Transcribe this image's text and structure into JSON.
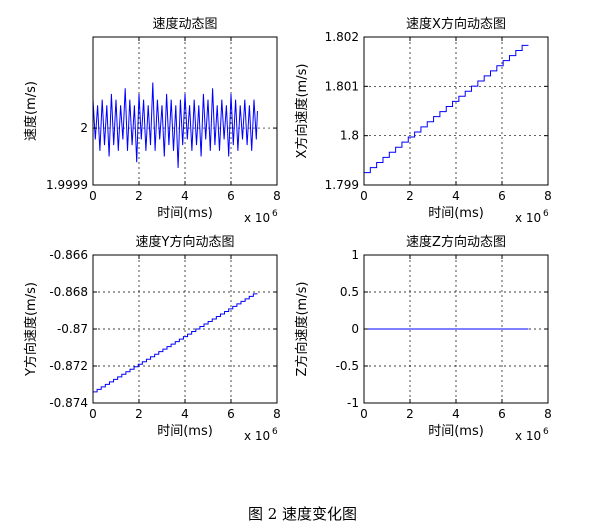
{
  "figure_caption": "图 2  速度变化图",
  "chart_data": [
    {
      "type": "line",
      "title": "速度动态图",
      "xlabel": "时间(ms)",
      "ylabel": "速度(m/s)",
      "x_multiplier": "x 10",
      "x_multiplier_exp": "6",
      "xlim": [
        0,
        8
      ],
      "ylim": [
        1.9999,
        2.00016
      ],
      "xticks": [
        "0",
        "2",
        "4",
        "6",
        "8"
      ],
      "xtick_values": [
        0,
        2,
        4,
        6,
        8
      ],
      "yticks": [
        "1.9999",
        "2"
      ],
      "ytick_values": [
        1.9999,
        2.0
      ],
      "grid": true,
      "line_color": "#0000ff",
      "series": [
        {
          "x": [
            0.0,
            0.1,
            0.2,
            0.3,
            0.4,
            0.5,
            0.6,
            0.7,
            0.8,
            0.9,
            1.0,
            1.1,
            1.2,
            1.3,
            1.4,
            1.5,
            1.6,
            1.7,
            1.8,
            1.9,
            2.0,
            2.1,
            2.2,
            2.3,
            2.4,
            2.5,
            2.6,
            2.7,
            2.8,
            2.9,
            3.0,
            3.1,
            3.2,
            3.3,
            3.4,
            3.5,
            3.6,
            3.7,
            3.8,
            3.9,
            4.0,
            4.1,
            4.2,
            4.3,
            4.4,
            4.5,
            4.6,
            4.7,
            4.8,
            4.9,
            5.0,
            5.1,
            5.2,
            5.3,
            5.4,
            5.5,
            5.6,
            5.7,
            5.8,
            5.9,
            6.0,
            6.1,
            6.2,
            6.3,
            6.4,
            6.5,
            6.6,
            6.7,
            6.8,
            6.9,
            7.0,
            7.1,
            7.15
          ],
          "y": [
            2.00005,
            1.99998,
            2.00004,
            1.99996,
            2.00005,
            1.99997,
            2.00004,
            1.99995,
            2.00006,
            1.99997,
            2.00005,
            1.99996,
            2.00004,
            1.99998,
            2.00007,
            1.99996,
            2.00005,
            1.99997,
            2.00004,
            1.99994,
            2.00006,
            1.99998,
            2.00005,
            1.99996,
            2.00004,
            1.99997,
            2.00008,
            1.99996,
            2.00005,
            1.99998,
            2.00004,
            1.99995,
            2.00006,
            1.99997,
            2.00005,
            1.99996,
            2.00004,
            1.99993,
            2.00005,
            1.99997,
            2.00006,
            1.99998,
            2.00004,
            1.99996,
            2.00005,
            1.99997,
            2.00004,
            1.99995,
            2.00006,
            1.99998,
            2.00005,
            1.99996,
            2.00007,
            1.99997,
            2.00004,
            1.99996,
            2.00005,
            1.99998,
            2.00004,
            1.99995,
            2.00006,
            1.99997,
            2.00005,
            1.99996,
            2.00004,
            1.99998,
            2.00005,
            1.99997,
            2.00004,
            1.99996,
            2.00005,
            1.99998,
            2.00003
          ]
        }
      ]
    },
    {
      "type": "line",
      "title": "速度X方向动态图",
      "xlabel": "时间(ms)",
      "ylabel": "X方向速度(m/s)",
      "x_multiplier": "x 10",
      "x_multiplier_exp": "6",
      "xlim": [
        0,
        8
      ],
      "ylim": [
        1.799,
        1.802
      ],
      "xticks": [
        "0",
        "2",
        "4",
        "6",
        "8"
      ],
      "xtick_values": [
        0,
        2,
        4,
        6,
        8
      ],
      "yticks": [
        "1.799",
        "1.8",
        "1.801",
        "1.802"
      ],
      "ytick_values": [
        1.799,
        1.8,
        1.801,
        1.802
      ],
      "grid": true,
      "line_color": "#0000ff",
      "series": [
        {
          "x": [
            0,
            7.15
          ],
          "y": [
            1.79925,
            1.80183
          ],
          "style": "staircase",
          "steps": 26
        }
      ]
    },
    {
      "type": "line",
      "title": "速度Y方向动态图",
      "xlabel": "时间(ms)",
      "ylabel": "Y方向速度(m/s)",
      "x_multiplier": "x 10",
      "x_multiplier_exp": "6",
      "xlim": [
        0,
        8
      ],
      "ylim": [
        -0.874,
        -0.866
      ],
      "xticks": [
        "0",
        "2",
        "4",
        "6",
        "8"
      ],
      "xtick_values": [
        0,
        2,
        4,
        6,
        8
      ],
      "yticks": [
        "-0.874",
        "-0.872",
        "-0.87",
        "-0.868",
        "-0.866"
      ],
      "ytick_values": [
        -0.874,
        -0.872,
        -0.87,
        -0.868,
        -0.866
      ],
      "grid": true,
      "line_color": "#0000ff",
      "series": [
        {
          "x": [
            0,
            7.15
          ],
          "y": [
            -0.8734,
            -0.8681
          ],
          "style": "staircase",
          "steps": 40
        }
      ]
    },
    {
      "type": "line",
      "title": "速度Z方向动态图",
      "xlabel": "时间(ms)",
      "ylabel": "Z方向速度(m/s)",
      "x_multiplier": "x 10",
      "x_multiplier_exp": "6",
      "xlim": [
        0,
        8
      ],
      "ylim": [
        -1,
        1
      ],
      "xticks": [
        "0",
        "2",
        "4",
        "6",
        "8"
      ],
      "xtick_values": [
        0,
        2,
        4,
        6,
        8
      ],
      "yticks": [
        "-1",
        "-0.5",
        "0",
        "0.5",
        "1"
      ],
      "ytick_values": [
        -1,
        -0.5,
        0,
        0.5,
        1
      ],
      "grid": true,
      "line_color": "#0000ff",
      "series": [
        {
          "x": [
            0,
            7.15
          ],
          "y": [
            0,
            0
          ]
        }
      ]
    }
  ]
}
